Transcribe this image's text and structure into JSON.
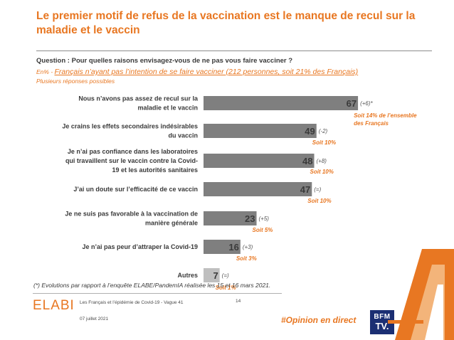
{
  "header": {
    "title": "Le premier motif de refus de la vaccination est le manque de recul sur la maladie et le vaccin",
    "question": "Question : Pour quelles raisons envisagez-vous de ne pas vous faire vacciner ?",
    "basis_prefix": "En% - ",
    "basis_label": "Français n’ayant pas l’intention de se faire vacciner (212 personnes, soit 21% des Français)",
    "multi": "Plusieurs réponses possibles"
  },
  "colors": {
    "accent": "#e87722",
    "bar": "#7f7f7f",
    "bar_light": "#bfbfbf",
    "navy": "#1b2f73"
  },
  "chart_data": {
    "type": "bar",
    "orientation": "horizontal",
    "unit": "%",
    "xlim": [
      0,
      67
    ],
    "categories": [
      [
        "Nous n’avons pas assez de recul sur la",
        "maladie et le vaccin"
      ],
      [
        "Je crains les effets secondaires indésirables",
        "du vaccin"
      ],
      [
        "Je n’ai pas confiance dans les laboratoires",
        "qui travaillent sur le vaccin contre la Covid-",
        "19 et les autorités sanitaires"
      ],
      [
        "J’ai un doute sur l’efficacité de ce vaccin"
      ],
      [
        "Je ne suis pas favorable à la vaccination de",
        "manière générale"
      ],
      [
        "Je n’ai pas peur d’attraper la Covid-19"
      ],
      [
        "Autres"
      ]
    ],
    "values": [
      67,
      49,
      48,
      47,
      23,
      16,
      7
    ],
    "evolutions": [
      "(+6)*",
      "(-2)",
      "(+8)",
      "(=)",
      "(+5)",
      "(+3)",
      "(=)"
    ],
    "soit": [
      [
        "Soit 14% de l’ensemble",
        "des Français"
      ],
      [
        "Soit 10%"
      ],
      [
        "Soit 10%"
      ],
      [
        "Soit 10%"
      ],
      [
        "Soit 5%"
      ],
      [
        "Soit 3%"
      ],
      [
        "Soit 1%"
      ]
    ]
  },
  "footer": {
    "footnote": "(*) Evolutions par rapport à l’enquête ELABE/PandemIA réalisée les 15 et 16 mars 2021.",
    "brand": "ELABE",
    "source": "Les Français et l’épidémie de Covid-19 - Vague 41",
    "date": "07 juillet 2021",
    "page": "14",
    "hashtag": "#Opinion en direct",
    "logo_top": "BFM",
    "logo_bottom": "TV."
  }
}
